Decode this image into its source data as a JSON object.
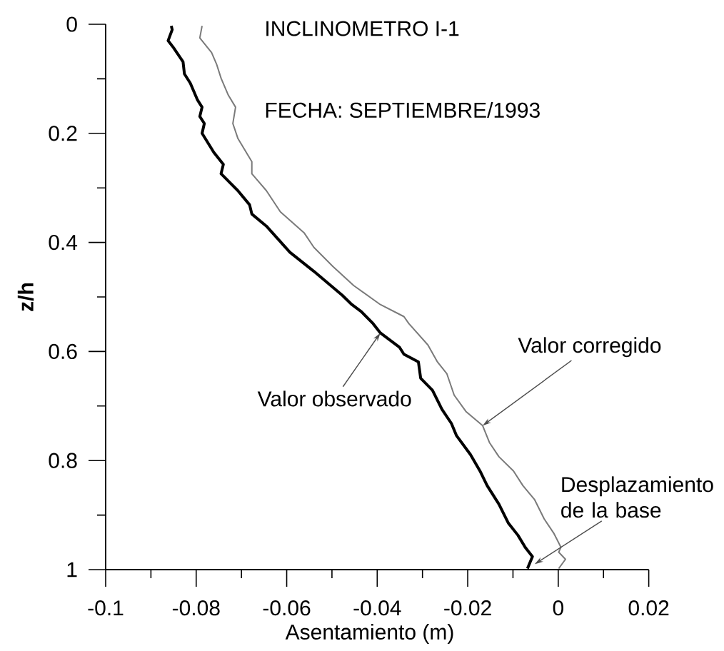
{
  "chart_data": {
    "type": "line",
    "title": "INCLINOMETRO I-1",
    "subtitle": "FECHA: SEPTIEMBRE/1993",
    "xlabel": "Asentamiento (m)",
    "ylabel": "z/h",
    "series": [
      {
        "name": "Valor observado",
        "color": "#000000",
        "x": [
          -0.0855,
          -0.0853,
          -0.0862,
          -0.085,
          -0.0829,
          -0.0826,
          -0.0813,
          -0.0797,
          -0.0787,
          -0.0792,
          -0.0782,
          -0.0787,
          -0.0761,
          -0.074,
          -0.0745,
          -0.0708,
          -0.0682,
          -0.0677,
          -0.0645,
          -0.0593,
          -0.054,
          -0.0477,
          -0.0456,
          -0.0435,
          -0.0409,
          -0.0393,
          -0.0351,
          -0.0341,
          -0.0309,
          -0.0304,
          -0.0278,
          -0.0257,
          -0.0236,
          -0.0225,
          -0.0194,
          -0.0173,
          -0.0157,
          -0.0131,
          -0.011,
          -0.0089,
          -0.0073,
          -0.0057,
          -0.0068
        ],
        "values": [
          0.003,
          0.01,
          0.03,
          0.043,
          0.069,
          0.091,
          0.108,
          0.139,
          0.152,
          0.169,
          0.182,
          0.2,
          0.235,
          0.257,
          0.274,
          0.305,
          0.331,
          0.348,
          0.37,
          0.418,
          0.453,
          0.497,
          0.514,
          0.527,
          0.549,
          0.566,
          0.592,
          0.605,
          0.619,
          0.649,
          0.671,
          0.706,
          0.732,
          0.754,
          0.789,
          0.819,
          0.846,
          0.88,
          0.915,
          0.937,
          0.959,
          0.976,
          0.998
        ]
      },
      {
        "name": "Valor corregido",
        "color": "#7a7a7a",
        "x": [
          -0.0787,
          -0.0792,
          -0.0766,
          -0.0755,
          -0.0745,
          -0.0729,
          -0.0713,
          -0.0719,
          -0.0708,
          -0.0677,
          -0.0677,
          -0.0645,
          -0.0614,
          -0.0561,
          -0.054,
          -0.0498,
          -0.0452,
          -0.0393,
          -0.0341,
          -0.033,
          -0.0288,
          -0.0267,
          -0.0246,
          -0.023,
          -0.0204,
          -0.0167,
          -0.0152,
          -0.0131,
          -0.0099,
          -0.0078,
          -0.0052,
          -0.0031,
          -0.001,
          0.0006,
          0.0001,
          0.0016,
          0.0001
        ],
        "values": [
          0.003,
          0.025,
          0.052,
          0.073,
          0.099,
          0.13,
          0.152,
          0.182,
          0.209,
          0.252,
          0.274,
          0.305,
          0.344,
          0.383,
          0.409,
          0.444,
          0.479,
          0.514,
          0.536,
          0.549,
          0.588,
          0.619,
          0.641,
          0.68,
          0.71,
          0.736,
          0.767,
          0.793,
          0.819,
          0.846,
          0.872,
          0.907,
          0.933,
          0.959,
          0.968,
          0.981,
          0.998
        ]
      }
    ],
    "xlim": [
      -0.1,
      0.02
    ],
    "xticks": [
      -0.1,
      {
        "value": -0.09,
        "label": null
      },
      -0.08,
      {
        "value": -0.07,
        "label": null
      },
      -0.06,
      {
        "value": -0.05,
        "label": null
      },
      -0.04,
      {
        "value": -0.03,
        "label": null
      },
      -0.02,
      {
        "value": -0.01,
        "label": null
      },
      0,
      {
        "value": 0.01,
        "label": null
      },
      0.02
    ],
    "ylim": [
      1,
      0
    ],
    "yticks": [
      0,
      {
        "value": 0.1,
        "label": null
      },
      0.2,
      {
        "value": 0.3,
        "label": null
      },
      0.4,
      {
        "value": 0.5,
        "label": null
      },
      0.6,
      {
        "value": 0.7,
        "label": null
      },
      0.8,
      {
        "value": 0.9,
        "label": null
      },
      1
    ],
    "annotations": [
      {
        "text": "Desplazamiento de la base",
        "x": -0.0052,
        "y": 0.99
      }
    ]
  }
}
